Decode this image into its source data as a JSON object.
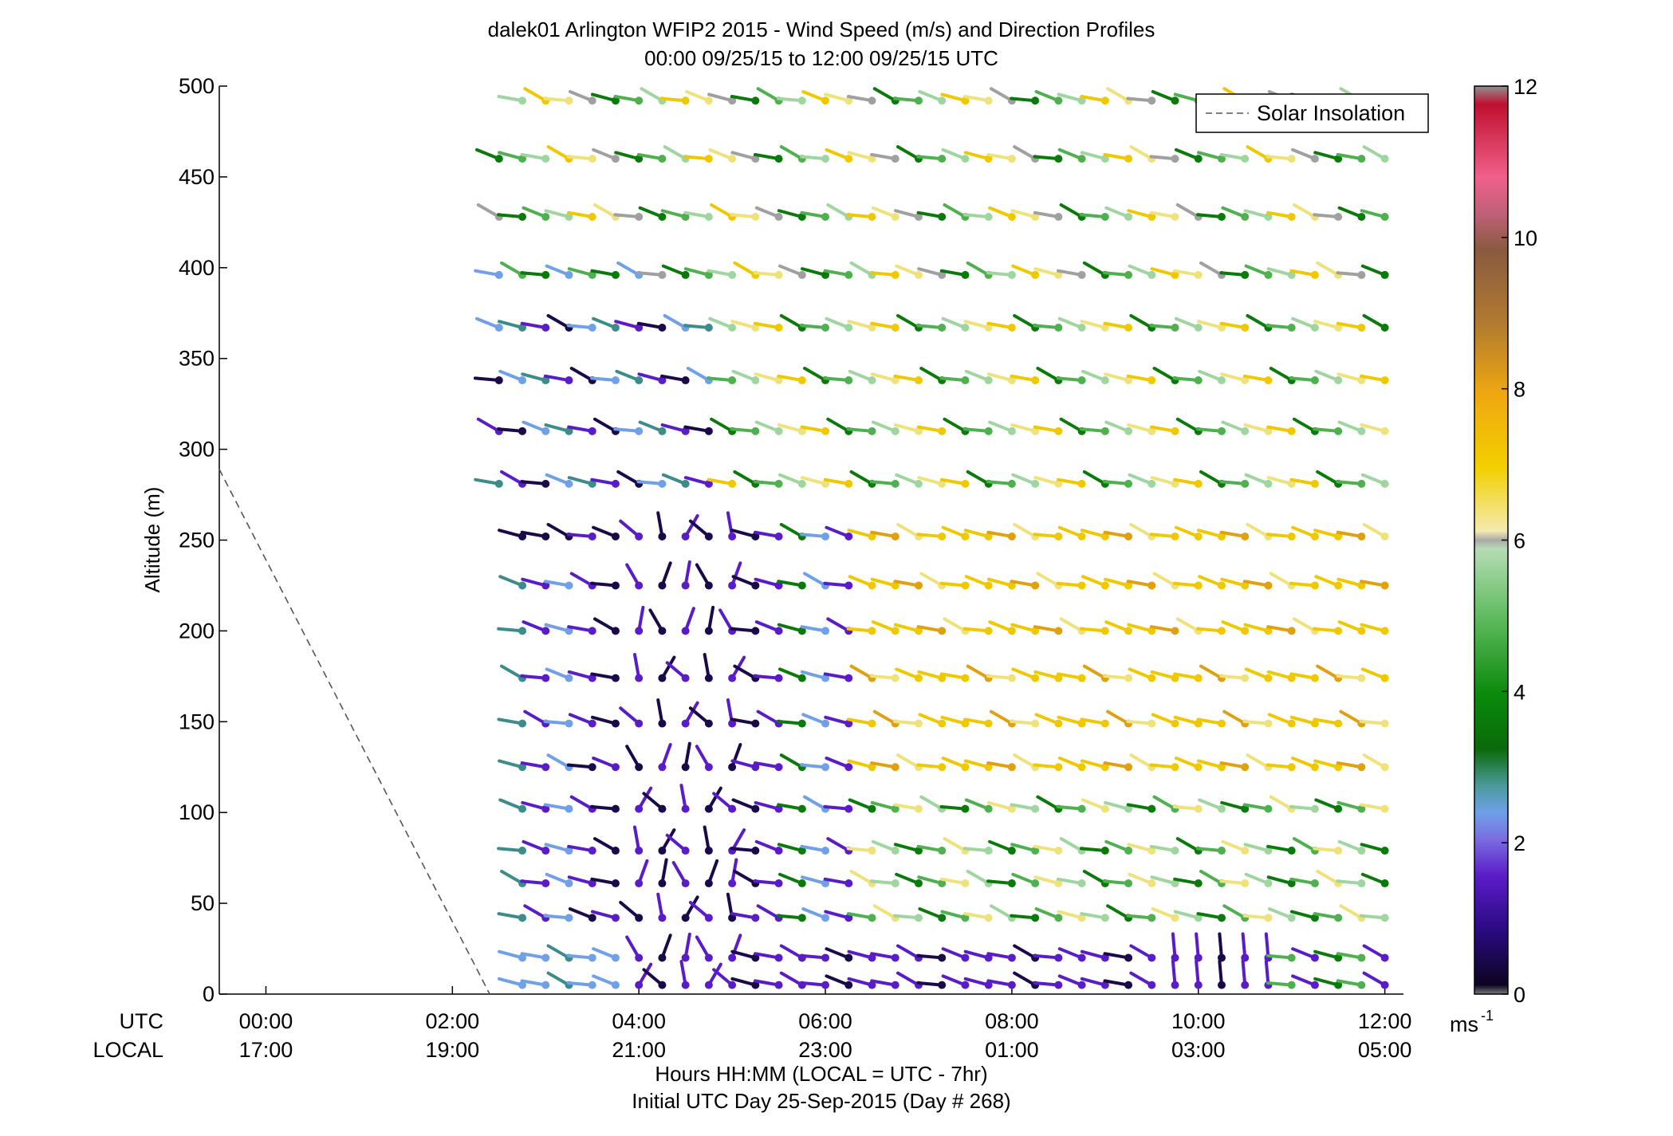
{
  "chart_data": {
    "type": "wind-barb-profile",
    "title": "dalek01 Arlington WFIP2 2015 - Wind Speed (m/s) and Direction Profiles",
    "subtitle": "00:00 09/25/15 to 12:00 09/25/15  UTC",
    "ylabel": "Altitude (m)",
    "xlabel": "Hours HH:MM  (LOCAL = UTC - 7hr)",
    "xlabel2": "Initial UTC Day 25-Sep-2015 (Day # 268)",
    "xlim_hours_utc": [
      -0.5,
      12.2
    ],
    "ylim_m": [
      0,
      500
    ],
    "yticks": [
      "0",
      "50",
      "100",
      "150",
      "200",
      "250",
      "300",
      "350",
      "400",
      "450",
      "500"
    ],
    "row_label_utc": "UTC",
    "row_label_local": "LOCAL",
    "xticks_utc": [
      "00:00",
      "02:00",
      "04:00",
      "06:00",
      "08:00",
      "10:00",
      "12:00"
    ],
    "xticks_local": [
      "17:00",
      "19:00",
      "21:00",
      "23:00",
      "01:00",
      "03:00",
      "05:00"
    ],
    "legend": {
      "entries": [
        "Solar Insolation"
      ],
      "placement": "top-right"
    },
    "colorbar": {
      "range": [
        0,
        12
      ],
      "ticks": [
        "0",
        "2",
        "4",
        "6",
        "8",
        "10",
        "12"
      ],
      "unit": "ms",
      "unit_exp": "-1"
    },
    "solar_insolation": {
      "x_hours": [
        -0.5,
        2.4
      ],
      "y_m": [
        289,
        0
      ]
    },
    "profile_altitudes_m": [
      5,
      20,
      42,
      61,
      79,
      102,
      125,
      149,
      174,
      200,
      225,
      252,
      281,
      310,
      338,
      367,
      396,
      428,
      460,
      492
    ],
    "time_start_h": 2.75,
    "time_step_h": 0.25,
    "time_end_h": 12.0,
    "colors": {
      "dark_blue": "#1a0a4a",
      "purple": "#5a1cc8",
      "light_blue": "#6fa0e8",
      "teal": "#3c8c8c",
      "green_dark": "#0a7a0a",
      "green": "#4fb04f",
      "green_light": "#9fd69f",
      "pale": "#d8d8b8",
      "yellow_pale": "#f0e27a",
      "yellow": "#f0c800",
      "orange": "#e0a010",
      "gray": "#a0a0a0"
    }
  }
}
